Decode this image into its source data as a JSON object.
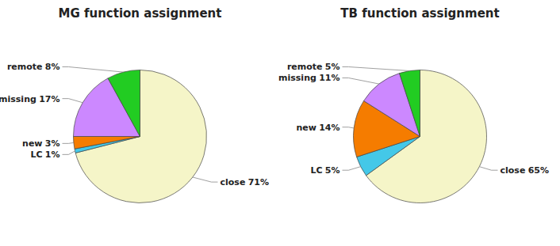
{
  "chart_data": [
    {
      "type": "pie",
      "title": "MG function assignment",
      "categories": [
        "close",
        "LC",
        "new",
        "missing",
        "remote"
      ],
      "values": [
        71,
        1,
        3,
        17,
        8
      ],
      "value_labels": [
        "71%",
        "1%",
        "3%",
        "17%",
        "8%"
      ],
      "colors": [
        "#f5f5c8",
        "#44c8e8",
        "#f57c00",
        "#cc88ff",
        "#22cc22"
      ],
      "data_labels": true
    },
    {
      "type": "pie",
      "title": "TB function assignment",
      "categories": [
        "close",
        "LC",
        "new",
        "missing",
        "remote"
      ],
      "values": [
        65,
        5,
        14,
        11,
        5
      ],
      "value_labels": [
        "65%",
        "5%",
        "14%",
        "11%",
        "5%"
      ],
      "colors": [
        "#f5f5c8",
        "#44c8e8",
        "#f57c00",
        "#cc88ff",
        "#22cc22"
      ],
      "data_labels": true
    }
  ]
}
